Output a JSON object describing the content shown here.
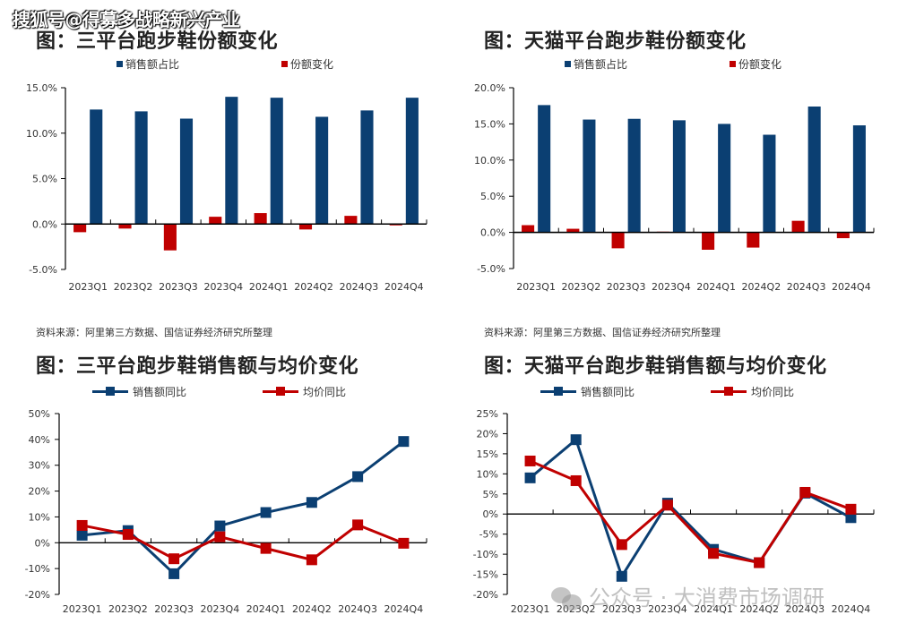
{
  "watermark": {
    "top": "搜狐号@得募多战略新兴产业",
    "bottom": "公众号 · 大消费市场调研"
  },
  "colors": {
    "blue": "#0b3f72",
    "red": "#c00000",
    "axis": "#000000"
  },
  "source_text": "资料来源：阿里第三方数据、国信证券经济研究所整理",
  "chart_data": [
    {
      "type": "bar",
      "title": "图：三平台跑步鞋份额变化",
      "categories": [
        "2023Q1",
        "2023Q2",
        "2023Q3",
        "2023Q4",
        "2024Q1",
        "2024Q2",
        "2024Q3",
        "2024Q4"
      ],
      "series": [
        {
          "name": "份额变化",
          "color": "#c00000",
          "values": [
            -0.9,
            -0.5,
            -2.9,
            0.8,
            1.2,
            -0.6,
            0.9,
            -0.15
          ]
        },
        {
          "name": "销售额占比",
          "color": "#0b3f72",
          "values": [
            12.6,
            12.4,
            11.6,
            14.0,
            13.9,
            11.8,
            12.5,
            13.9
          ]
        }
      ],
      "legend": [
        "销售额占比",
        "份额变化"
      ],
      "legend_position": "top",
      "ylim": [
        -5,
        15
      ],
      "yticks": [
        -5,
        0,
        5,
        10,
        15
      ],
      "ytick_labels": [
        "-5.0%",
        "0.0%",
        "5.0%",
        "10.0%",
        "15.0%"
      ],
      "xlabel": "",
      "ylabel": "",
      "grid": false
    },
    {
      "type": "bar",
      "title": "图：天猫平台跑步鞋份额变化",
      "categories": [
        "2023Q1",
        "2023Q2",
        "2023Q3",
        "2023Q4",
        "2024Q1",
        "2024Q2",
        "2024Q3",
        "2024Q4"
      ],
      "series": [
        {
          "name": "份额变化",
          "color": "#c00000",
          "values": [
            1.0,
            0.5,
            -2.2,
            0.1,
            -2.4,
            -2.1,
            1.6,
            -0.8
          ]
        },
        {
          "name": "销售额占比",
          "color": "#0b3f72",
          "values": [
            17.6,
            15.6,
            15.7,
            15.5,
            15.0,
            13.5,
            17.4,
            14.8
          ]
        }
      ],
      "legend": [
        "销售额占比",
        "份额变化"
      ],
      "legend_position": "top",
      "ylim": [
        -5,
        20
      ],
      "yticks": [
        -5,
        0,
        5,
        10,
        15,
        20
      ],
      "ytick_labels": [
        "-5.0%",
        "0.0%",
        "5.0%",
        "10.0%",
        "15.0%",
        "20.0%"
      ],
      "xlabel": "",
      "ylabel": "",
      "grid": false
    },
    {
      "type": "line",
      "title": "图：三平台跑步鞋销售额与均价变化",
      "categories": [
        "2023Q1",
        "2023Q2",
        "2023Q3",
        "2023Q4",
        "2024Q1",
        "2024Q2",
        "2024Q3",
        "2024Q4"
      ],
      "series": [
        {
          "name": "销售额同比",
          "color": "#0b3f72",
          "values": [
            2.9,
            4.7,
            -12.0,
            6.5,
            11.7,
            15.6,
            25.6,
            39.2
          ]
        },
        {
          "name": "均价同比",
          "color": "#c00000",
          "values": [
            6.7,
            3.2,
            -6.2,
            2.3,
            -2.2,
            -6.6,
            6.9,
            -0.2
          ]
        }
      ],
      "legend_position": "top",
      "ylim": [
        -20,
        50
      ],
      "yticks": [
        -20,
        -10,
        0,
        10,
        20,
        30,
        40,
        50
      ],
      "ytick_labels": [
        "-20%",
        "-10%",
        "0%",
        "10%",
        "20%",
        "30%",
        "40%",
        "50%"
      ],
      "xlabel": "",
      "ylabel": "",
      "grid": false
    },
    {
      "type": "line",
      "title": "图：天猫平台跑步鞋销售额与均价变化",
      "categories": [
        "2023Q1",
        "2023Q2",
        "2023Q3",
        "2023Q4",
        "2024Q1",
        "2024Q2",
        "2024Q3",
        "2024Q4"
      ],
      "series": [
        {
          "name": "销售额同比",
          "color": "#0b3f72",
          "values": [
            9.0,
            18.5,
            -15.5,
            2.7,
            -8.8,
            -12.1,
            5.2,
            -0.9
          ]
        },
        {
          "name": "均价同比",
          "color": "#c00000",
          "values": [
            13.2,
            8.3,
            -7.6,
            2.2,
            -9.8,
            -12.1,
            5.4,
            1.2
          ]
        }
      ],
      "legend_position": "top",
      "ylim": [
        -20,
        25
      ],
      "yticks": [
        -20,
        -15,
        -10,
        -5,
        0,
        5,
        10,
        15,
        20,
        25
      ],
      "ytick_labels": [
        "-20%",
        "-15%",
        "-10%",
        "-5%",
        "0%",
        "5%",
        "10%",
        "15%",
        "20%",
        "25%"
      ],
      "xlabel": "",
      "ylabel": "",
      "grid": false
    }
  ]
}
